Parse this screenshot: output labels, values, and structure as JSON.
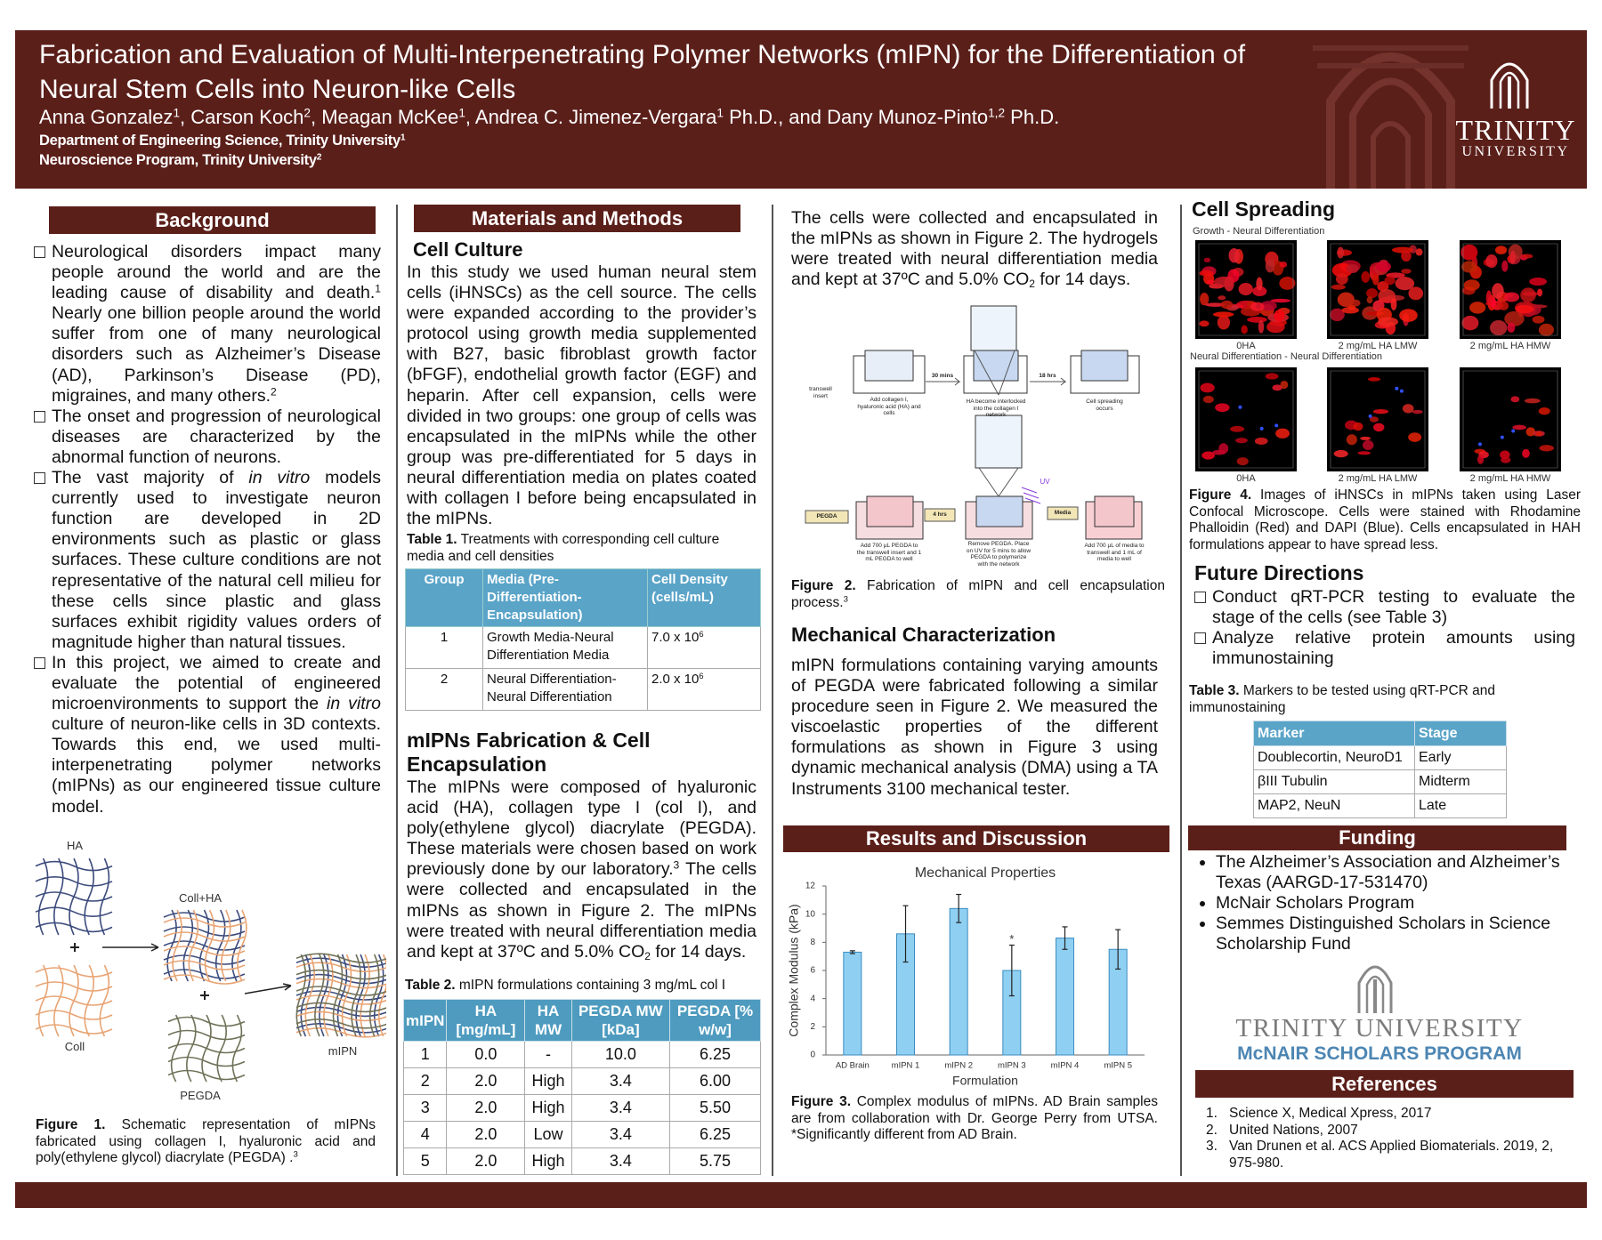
{
  "header": {
    "title": "Fabrication and Evaluation of Multi-Interpenetrating Polymer Networks (mIPN) for the Differentiation of Neural Stem Cells into Neuron-like Cells",
    "authors": [
      "Anna Gonzalez",
      {
        "sup": "1"
      },
      ", Carson Koch",
      {
        "sup": "2"
      },
      ", Meagan McKee",
      {
        "sup": "1"
      },
      ", Andrea C. Jimenez-Vergara",
      {
        "sup": "1"
      },
      " Ph.D., and Dany Munoz-Pinto",
      {
        "sup": "1,2"
      },
      " Ph.D."
    ],
    "affiliations": [
      [
        "Department of Engineering Science, Trinity University",
        {
          "sup": "1"
        }
      ],
      [
        "Neuroscience Program, Trinity University",
        {
          "sup": "2"
        }
      ]
    ],
    "logo": {
      "name": "TRINITY",
      "sub": "UNIVERSITY"
    }
  },
  "background": {
    "heading": "Background",
    "bullets": [
      [
        "Neurological disorders impact many people around the world and are the leading cause of disability and death.",
        {
          "sup": "1"
        },
        " Nearly one billion people around the world suffer from one of many neurological disorders such as Alzheimer’s Disease (AD), Parkinson’s Disease (PD), migraines, and many others.",
        {
          "sup": "2"
        }
      ],
      [
        "The onset and progression of neurological diseases are characterized by the abnormal function of neurons."
      ],
      [
        "The vast majority of ",
        {
          "i": "in vitro"
        },
        " models currently used to investigate neuron function are developed in 2D environments such as plastic or glass surfaces. These culture conditions are not representative of the natural cell milieu for these cells since plastic and glass surfaces exhibit rigidity values orders of magnitude higher than natural tissues."
      ],
      [
        "In this project, we aimed to create and evaluate the potential of engineered microenvironments to support the ",
        {
          "i": "in vitro"
        },
        " culture of neuron-like cells in 3D contexts. Towards this end, we used multi-interpenetrating polymer networks (mIPNs) as our engineered tissue culture model."
      ]
    ]
  },
  "figure1": {
    "labels": {
      "ha": "HA",
      "coll_ha": "Coll+HA",
      "coll": "Coll",
      "pegda": "PEGDA",
      "mipn": "mIPN"
    },
    "caption": [
      {
        "b": "Figure 1."
      },
      " Schematic representation of mIPNs fabricated using collagen I, hyaluronic acid and poly(ethylene glycol) diacrylate (PEGDA) .",
      {
        "sup": "3"
      }
    ]
  },
  "methods": {
    "heading": "Materials and Methods",
    "cell_culture": {
      "heading": "Cell Culture",
      "text": "In this study we used human neural stem cells (iHNSCs) as the cell source. The cells were expanded according to the provider’s protocol using growth media supplemented with B27, basic fibroblast growth factor (bFGF), endothelial growth factor (EGF) and heparin. After cell expansion, cells were divided in two groups: one group of cells was encapsulated in the mIPNs while the other group was pre-differentiated  for 5 days in neural differentiation media on plates coated with collagen I before being encapsulated in the mIPNs."
    },
    "table1": {
      "caption": [
        {
          "b": "Table 1."
        },
        " Treatments with corresponding cell culture media and cell densities"
      ],
      "header": [
        "Group",
        "Media (Pre-Differentiation-Encapsulation)",
        "Cell Density (cells/mL)"
      ],
      "rows": [
        [
          "1",
          "Growth Media-Neural Differentiation Media",
          [
            "7.0 x 10",
            {
              "sup": "6"
            }
          ]
        ],
        [
          "2",
          "Neural Differentiation-Neural Differentiation",
          [
            "2.0 x 10",
            {
              "sup": "6"
            }
          ]
        ]
      ]
    },
    "fabrication": {
      "heading": "mIPNs Fabrication & Cell Encapsulation",
      "text": [
        "The mIPNs were composed of hyaluronic acid (HA), collagen type I (col I), and poly(ethylene glycol) diacrylate (PEGDA). These materials were chosen based on work previously done by our laboratory.",
        {
          "sup": "3"
        },
        " The cells were collected and encapsulated in the mIPNs as shown in Figure 2. The mIPNs were treated with neural differentiation media and kept at 37ºC and 5.0% CO",
        {
          "sub": "2"
        },
        " for 14 days."
      ]
    },
    "table2": {
      "caption": [
        {
          "b": "Table 2."
        },
        " mIPN formulations containing 3 mg/mL col I"
      ],
      "header": [
        "mIPN",
        "HA [mg/mL]",
        "HA MW",
        "PEGDA MW [kDa]",
        "PEGDA [% w/w]"
      ],
      "rows": [
        [
          "1",
          "0.0",
          "-",
          "10.0",
          "6.25"
        ],
        [
          "2",
          "2.0",
          "High",
          "3.4",
          "6.00"
        ],
        [
          "3",
          "2.0",
          "High",
          "3.4",
          "5.50"
        ],
        [
          "4",
          "2.0",
          "Low",
          "3.4",
          "6.25"
        ],
        [
          "5",
          "2.0",
          "High",
          "3.4",
          "5.75"
        ]
      ]
    }
  },
  "encapsulation_text": [
    "The cells were collected and encapsulated in the mIPNs as shown in Figure 2. The hydrogels were treated with neural differentiation media and kept at 37ºC and 5.0% CO",
    {
      "sub": "2"
    },
    " for 14 days."
  ],
  "figure2": {
    "labels": {
      "insert": "transwell insert",
      "step1": "Add collagen I, hyaluronic acid (HA) and cells",
      "time1": "30 mins",
      "step2": "HA become interlocked into the collagen I network",
      "time2": "18 hrs",
      "step3": "Cell spreading occurs",
      "pegda": "PEGDA",
      "step4": "Add 700 µL PEGDA to the transwell insert and 1 mL PEGDA to well",
      "time3": "4 hrs",
      "step5": "Remove PEGDA. Place on UV for 5 mins to allow PEGDA to polymerize with the network",
      "uv": "UV",
      "media": "Media",
      "step6": "Add 700 µL of media to transwell and 1 mL of media to well"
    },
    "caption": [
      {
        "b": "Figure 2."
      },
      " Fabrication of mIPN and cell encapsulation process.",
      {
        "sup": "3"
      }
    ]
  },
  "mechanical": {
    "heading": "Mechanical Characterization",
    "text": "mIPN formulations containing varying amounts of PEGDA  were fabricated following a similar procedure seen in Figure 2. We measured the viscoelastic properties of the different formulations as shown in Figure 3 using dynamic mechanical analysis (DMA) using a TA Instruments 3100 mechanical tester."
  },
  "results": {
    "heading": "Results and Discussion",
    "caption": [
      {
        "b": "Figure 3."
      },
      " Complex modulus of mIPNs. AD Brain samples are from collaboration with Dr. George Perry from UTSA. *Significantly different from AD Brain."
    ]
  },
  "chart_data": {
    "type": "bar",
    "title": "Mechanical Properties",
    "x_label": "Formulation",
    "y_label": "Complex Modulus (kPa)",
    "categories": [
      "AD Brain",
      "mIPN 1",
      "mIPN 2",
      "mIPN 3",
      "mIPN 4",
      "mIPN 5"
    ],
    "values": [
      7.3,
      8.6,
      10.4,
      6.0,
      8.3,
      7.5
    ],
    "errors": [
      0.1,
      2.0,
      1.0,
      1.8,
      0.8,
      1.4
    ],
    "color": "#8fd0f2",
    "ylim": [
      0,
      12
    ],
    "yticks": [
      0,
      2,
      4,
      6,
      8,
      10,
      12
    ],
    "annotations": [
      {
        "text": "*",
        "x": "mIPN 3"
      }
    ]
  },
  "cell_spreading": {
    "heading": "Cell Spreading",
    "rows": [
      {
        "label": "Growth - Neural Differentiation",
        "images": [
          "0HA",
          "2 mg/mL HA LMW",
          "2 mg/mL HA HMW"
        ]
      },
      {
        "label": "Neural Differentiation - Neural Differentiation",
        "images": [
          "0HA",
          "2 mg/mL HA LMW",
          "2 mg/mL HA HMW"
        ]
      }
    ],
    "caption": [
      {
        "b": "Figure 4."
      },
      " Images of iHNSCs in mIPNs taken using Laser Confocal Microscope. Cells were stained with Rhodamine Phalloidin (Red) and DAPI (Blue). Cells encapsulated in HAH formulations appear to have spread less."
    ]
  },
  "future": {
    "heading": "Future Directions",
    "bullets": [
      "Conduct qRT-PCR testing to evaluate the stage of the cells (see Table 3)",
      "Analyze relative protein amounts using immunostaining"
    ],
    "table3": {
      "caption": [
        {
          "b": "Table 3."
        },
        " Markers to be tested using qRT-PCR and immunostaining"
      ],
      "header": [
        "Marker",
        "Stage"
      ],
      "rows": [
        [
          "Doublecortin, NeuroD1",
          "Early"
        ],
        [
          "βIII Tubulin",
          "Midterm"
        ],
        [
          "MAP2, NeuN",
          "Late"
        ]
      ]
    }
  },
  "funding": {
    "heading": "Funding",
    "bullets": [
      "The Alzheimer’s Association and Alzheimer’s Texas (AARGD-17-531470)",
      "McNair Scholars Program",
      "Semmes Distinguished Scholars in Science Scholarship Fund"
    ],
    "logo": {
      "name": "TRINITY UNIVERSITY",
      "program": "McNAIR SCHOLARS PROGRAM"
    }
  },
  "references": {
    "heading": "References",
    "items": [
      {
        "num": "1.",
        "text": "Science X, Medical Xpress, 2017"
      },
      {
        "num": "2.",
        "text": "United Nations, 2007"
      },
      {
        "num": "3.",
        "text": "Van Drunen et al. ACS Applied Biomaterials. 2019, 2, 975-980."
      }
    ]
  }
}
